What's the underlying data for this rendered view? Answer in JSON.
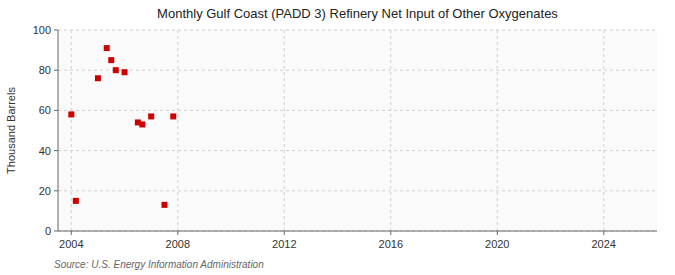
{
  "chart_data": {
    "type": "scatter",
    "title": "Monthly Gulf Coast (PADD 3) Refinery Net Input of Other Oxygenates",
    "y_label": "Thousand Barrels",
    "annotations": [
      "Source: U.S. Energy Information Administration"
    ],
    "x": [
      2004.0,
      2004.17,
      2005.0,
      2005.33,
      2005.5,
      2005.67,
      2006.0,
      2006.5,
      2006.67,
      2007.0,
      2007.5,
      2007.83
    ],
    "values": [
      58,
      15,
      76,
      91,
      85,
      80,
      79,
      54,
      53,
      57,
      13,
      57
    ],
    "color": "#cc0000",
    "marker": "square",
    "xlim": [
      2003.5,
      2026.0
    ],
    "ylim": [
      0,
      100
    ],
    "xticks": [
      2004,
      2008,
      2012,
      2016,
      2020,
      2024
    ],
    "yticks": [
      0,
      20,
      40,
      60,
      80,
      100
    ],
    "grid": true
  }
}
